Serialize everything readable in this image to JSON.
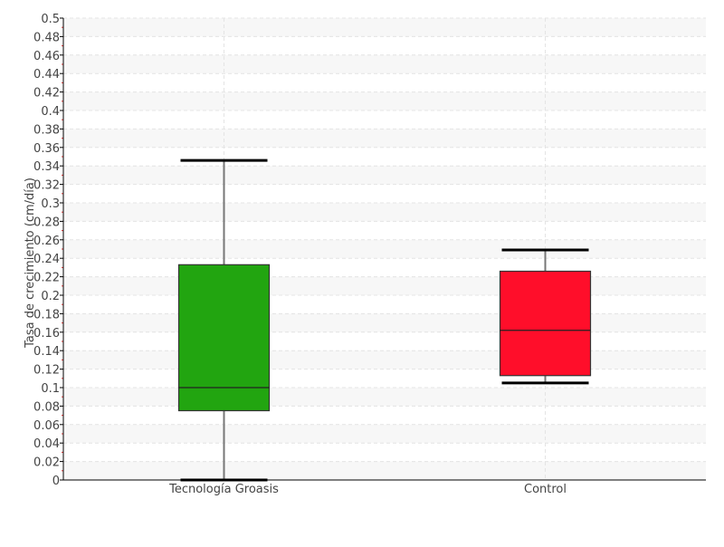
{
  "chart_data": {
    "type": "boxplot",
    "title": "",
    "xlabel": "",
    "ylabel": "Tasa de crecimiento (cm/día)",
    "ylim": [
      0,
      0.5
    ],
    "ytick_step": 0.02,
    "yticks": [
      "0",
      "0.02",
      "0.04",
      "0.06",
      "0.08",
      "0.1",
      "0.12",
      "0.14",
      "0.16",
      "0.18",
      "0.2",
      "0.22",
      "0.24",
      "0.26",
      "0.28",
      "0.3",
      "0.32",
      "0.34",
      "0.36",
      "0.38",
      "0.4",
      "0.42",
      "0.44",
      "0.46",
      "0.48",
      "0.5"
    ],
    "grid": true,
    "categories": [
      "Tecnología Groasis",
      "Control"
    ],
    "boxes": [
      {
        "category": "Tecnología Groasis",
        "min": 0.0,
        "q1": 0.075,
        "median": 0.1,
        "q3": 0.233,
        "max": 0.346,
        "color": "#22a510"
      },
      {
        "category": "Control",
        "min": 0.105,
        "q1": 0.113,
        "median": 0.162,
        "q3": 0.226,
        "max": 0.249,
        "color": "#ff0e2a"
      }
    ]
  }
}
